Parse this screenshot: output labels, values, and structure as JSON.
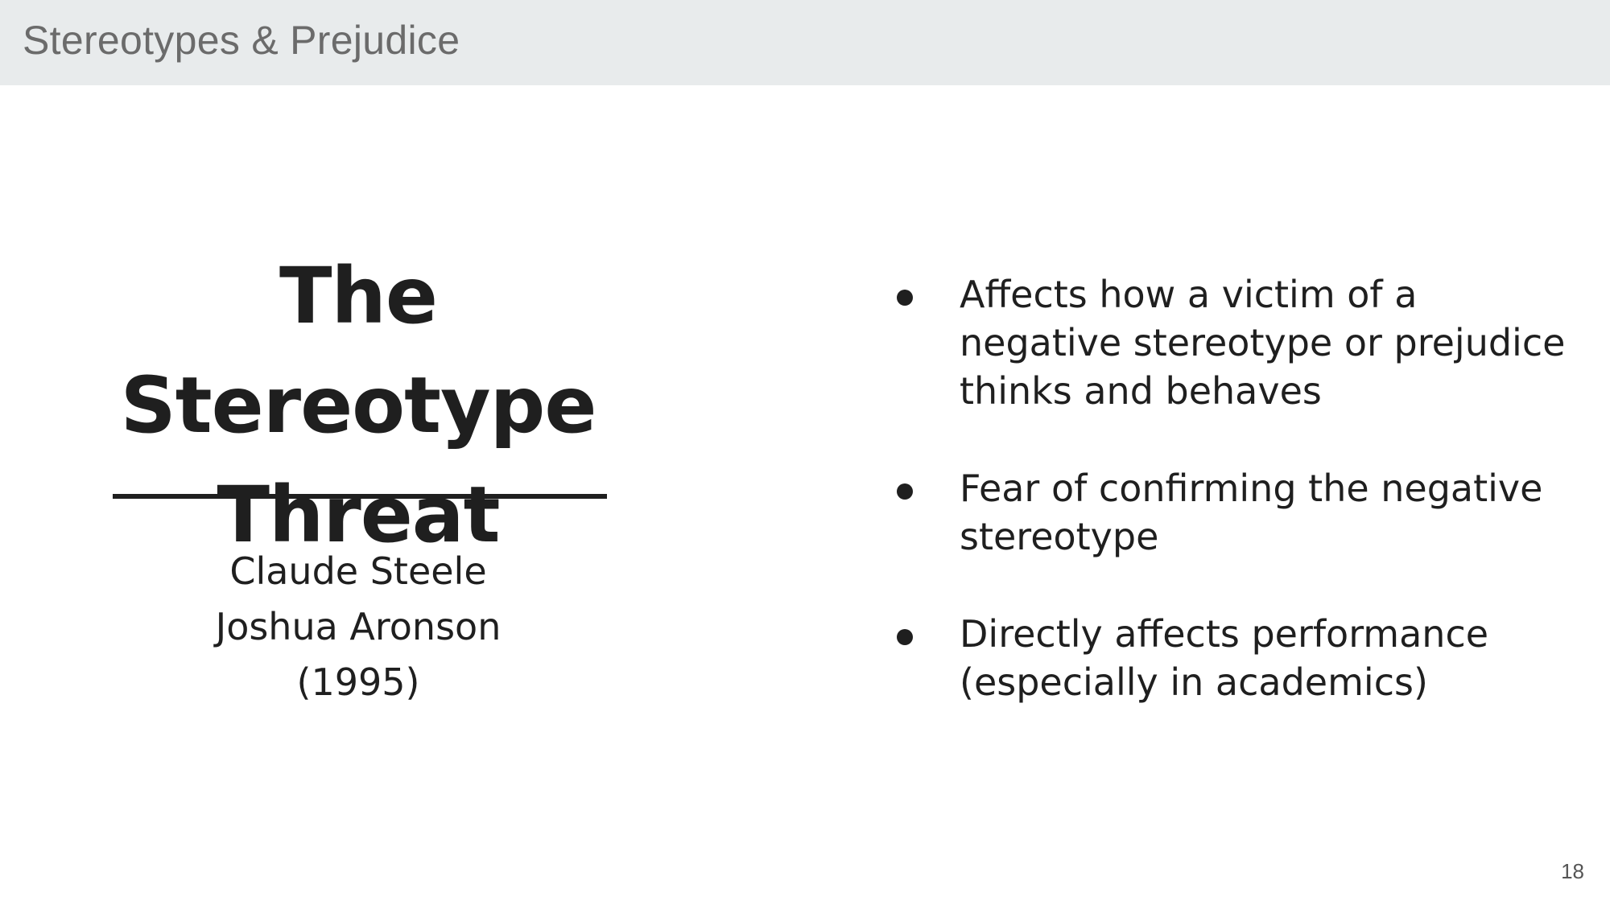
{
  "header": {
    "section_title": "Stereotypes & Prejudice"
  },
  "title": {
    "line1": "The Stereotype",
    "line2": "Threat"
  },
  "authors": {
    "line1": "Claude Steele",
    "line2": "Joshua Aronson",
    "year": "(1995)"
  },
  "bullets": [
    {
      "text": "Affects how a victim of a negative stereotype or prejudice thinks and behaves"
    },
    {
      "text": "Fear of confirming the negative stereotype"
    },
    {
      "text": "Directly affects performance (especially in academics)"
    }
  ],
  "footer": {
    "page_number": "18"
  },
  "colors": {
    "header_bar": "#e8ebec",
    "text": "#1f1f1f",
    "header_text": "#6b6b6b"
  }
}
